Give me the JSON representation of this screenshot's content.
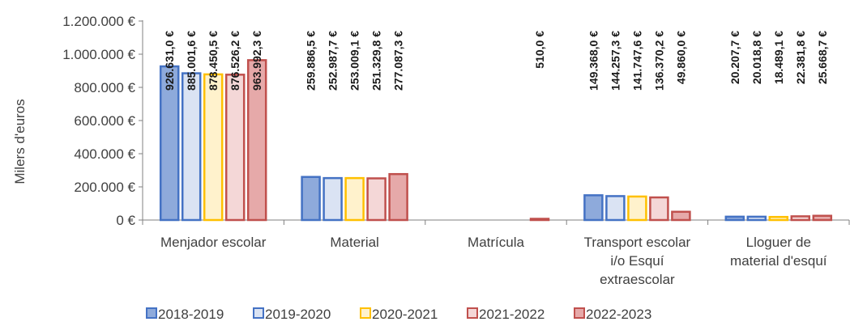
{
  "chart_data": {
    "type": "bar",
    "title": "",
    "ylabel": "Milers d'euros",
    "xlabel": "",
    "ylim": [
      0,
      1200000
    ],
    "yticks": [
      {
        "value": 0,
        "label": "0 €"
      },
      {
        "value": 200000,
        "label": "200.000 €"
      },
      {
        "value": 400000,
        "label": "400.000 €"
      },
      {
        "value": 600000,
        "label": "600.000 €"
      },
      {
        "value": 800000,
        "label": "800.000 €"
      },
      {
        "value": 1000000,
        "label": "1.000.000 €"
      },
      {
        "value": 1200000,
        "label": "1.200.000 €"
      }
    ],
    "categories": [
      [
        "Menjador escolar"
      ],
      [
        "Material"
      ],
      [
        "Matrícula"
      ],
      [
        "Transport escolar",
        "i/o Esquí",
        "extraescolar"
      ],
      [
        "Lloguer de",
        "material d'esquí"
      ]
    ],
    "legend_position": "bottom",
    "grid": false,
    "series": [
      {
        "name": "2018-2019",
        "fill": "#8eaadb",
        "stroke": "#4472c4",
        "values": [
          926631.0,
          259886.5,
          null,
          149368.0,
          20207.7
        ],
        "labels": [
          "926.631,0 €",
          "259.886,5 €",
          "",
          "149.368,0 €",
          "20.207,7 €"
        ]
      },
      {
        "name": "2019-2020",
        "fill": "#dae3f3",
        "stroke": "#4472c4",
        "values": [
          885001.6,
          252987.7,
          null,
          144257.3,
          20018.8
        ],
        "labels": [
          "885.001,6 €",
          "252.987,7 €",
          "",
          "144.257,3 €",
          "20.018,8 €"
        ]
      },
      {
        "name": "2020-2021",
        "fill": "#fff2cc",
        "stroke": "#ffc000",
        "values": [
          878450.5,
          253009.1,
          null,
          141747.6,
          18489.1
        ],
        "labels": [
          "878.450,5 €",
          "253.009,1 €",
          "",
          "141.747,6 €",
          "18.489,1 €"
        ]
      },
      {
        "name": "2021-2022",
        "fill": "#f4d7d7",
        "stroke": "#c0504d",
        "values": [
          876526.2,
          251329.8,
          null,
          136370.2,
          22381.8
        ],
        "labels": [
          "876.526,2 €",
          "251.329,8 €",
          "",
          "136.370,2 €",
          "22.381,8 €"
        ]
      },
      {
        "name": "2022-2023",
        "fill": "#e6a9a9",
        "stroke": "#c0504d",
        "values": [
          963992.3,
          277087.3,
          510.0,
          49860.0,
          25668.7
        ],
        "labels": [
          "963.992,3 €",
          "277.087,3 €",
          "510,0 €",
          "49.860,0 €",
          "25.668,7 €"
        ]
      }
    ]
  }
}
